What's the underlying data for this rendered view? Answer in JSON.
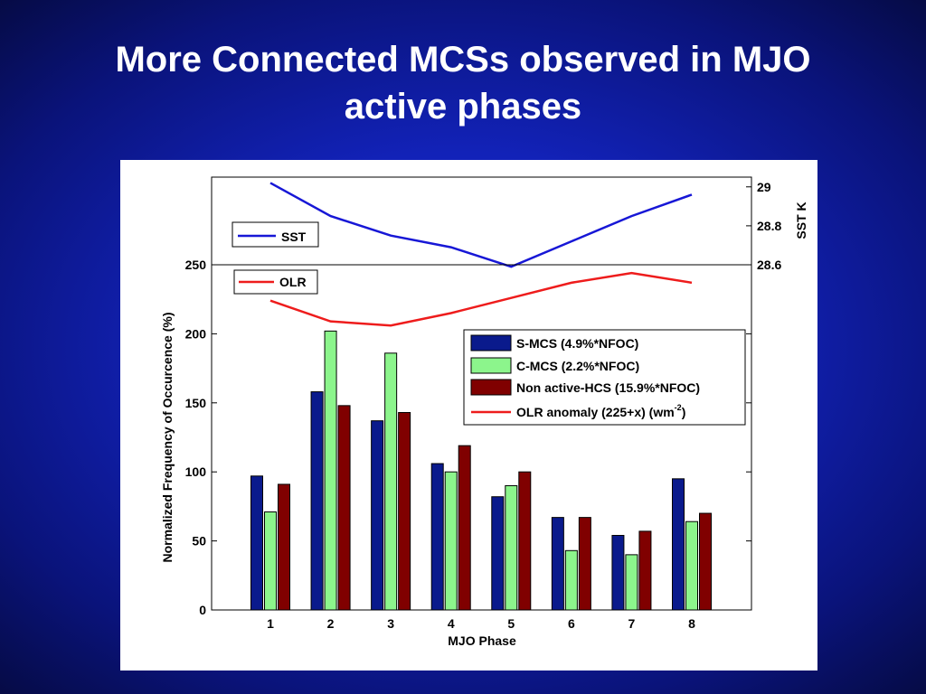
{
  "slide": {
    "title_line1": "More Connected MCSs observed in MJO",
    "title_line2": "active phases"
  },
  "chart_data": {
    "type": "bar",
    "xlabel": "MJO Phase",
    "ylabel": "Normalized Frequency of Occurcence (%)",
    "categories": [
      "1",
      "2",
      "3",
      "4",
      "5",
      "6",
      "7",
      "8"
    ],
    "ylim": [
      0,
      250
    ],
    "yticks": [
      "0",
      "50",
      "100",
      "150",
      "200",
      "250"
    ],
    "series": [
      {
        "name": "S-MCS (4.9%*NFOC)",
        "color": "#0a1a8c",
        "values": [
          97,
          158,
          137,
          106,
          82,
          67,
          54,
          95
        ]
      },
      {
        "name": "C-MCS (2.2%*NFOC)",
        "color": "#8cf58c",
        "values": [
          71,
          202,
          186,
          100,
          90,
          43,
          40,
          64
        ]
      },
      {
        "name": "Non active-HCS (15.9%*NFOC)",
        "color": "#800000",
        "values": [
          91,
          148,
          143,
          119,
          100,
          67,
          57,
          70
        ]
      }
    ],
    "line_series": {
      "name": "OLR anomaly (225+x) (wm",
      "name_sup": "-2",
      "name_end": ")",
      "inset_label": "OLR",
      "color": "#ee1c1c",
      "values": [
        224,
        209,
        206,
        215,
        226,
        237,
        244,
        237
      ]
    },
    "sst_panel": {
      "legend": "SST",
      "ylabel": "SST K",
      "color": "#1717d6",
      "ylim": [
        28.6,
        29.05
      ],
      "yticks": [
        "28.6",
        "28.8",
        "29"
      ],
      "values": [
        29.02,
        28.85,
        28.75,
        28.69,
        28.59,
        28.72,
        28.85,
        28.96
      ]
    },
    "grid": false,
    "legend_position": "upper-right"
  }
}
